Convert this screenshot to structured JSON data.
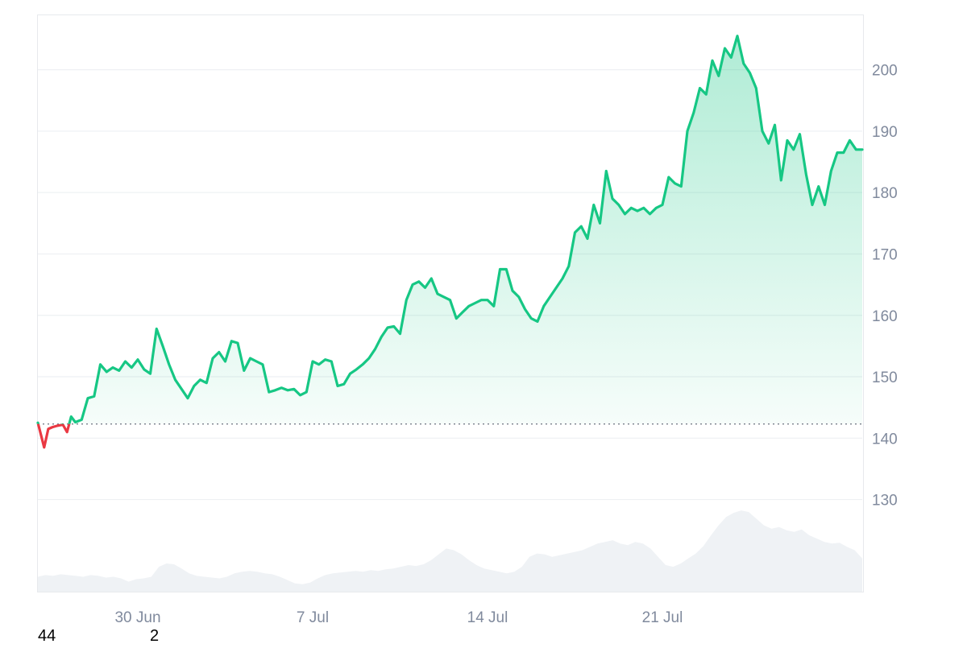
{
  "chart_data": {
    "type": "area",
    "title": "",
    "xlabel": "",
    "ylabel": "",
    "ylim": [
      115,
      209
    ],
    "y_ticks": [
      130,
      140,
      150,
      160,
      170,
      180,
      190,
      200
    ],
    "x_ticks": [
      {
        "date": "2025-06-30",
        "label": "30 Jun"
      },
      {
        "date": "2025-07-07",
        "label": "7 Jul"
      },
      {
        "date": "2025-07-14",
        "label": "14 Jul"
      },
      {
        "date": "2025-07-21",
        "label": "21 Jul"
      }
    ],
    "xlim": [
      "2025-06-26T00:00",
      "2025-07-29T00:00"
    ],
    "grid": "horizontal",
    "baseline": 142.3,
    "series": [
      {
        "role": "price",
        "x": [
          "2025-06-26T00:00",
          "2025-06-26T06:00",
          "2025-06-26T10:00",
          "2025-06-26T14:00",
          "2025-06-26T18:00",
          "2025-06-27T00:00",
          "2025-06-27T04:00",
          "2025-06-27T08:00",
          "2025-06-27T12:00",
          "2025-06-27T18:00",
          "2025-06-28T00:00",
          "2025-06-28T06:00",
          "2025-06-28T12:00",
          "2025-06-28T18:00",
          "2025-06-29T00:00",
          "2025-06-29T06:00",
          "2025-06-29T12:00",
          "2025-06-29T18:00",
          "2025-06-30T00:00",
          "2025-06-30T06:00",
          "2025-06-30T12:00",
          "2025-06-30T18:00",
          "2025-07-01T00:00",
          "2025-07-01T06:00",
          "2025-07-01T12:00",
          "2025-07-01T18:00",
          "2025-07-02T00:00",
          "2025-07-02T06:00",
          "2025-07-02T12:00",
          "2025-07-02T18:00",
          "2025-07-03T00:00",
          "2025-07-03T06:00",
          "2025-07-03T12:00",
          "2025-07-03T18:00",
          "2025-07-04T00:00",
          "2025-07-04T06:00",
          "2025-07-04T12:00",
          "2025-07-04T18:00",
          "2025-07-05T00:00",
          "2025-07-05T06:00",
          "2025-07-05T12:00",
          "2025-07-05T18:00",
          "2025-07-06T00:00",
          "2025-07-06T06:00",
          "2025-07-06T12:00",
          "2025-07-06T18:00",
          "2025-07-07T00:00",
          "2025-07-07T06:00",
          "2025-07-07T12:00",
          "2025-07-07T18:00",
          "2025-07-08T00:00",
          "2025-07-08T06:00",
          "2025-07-08T12:00",
          "2025-07-08T18:00",
          "2025-07-09T00:00",
          "2025-07-09T06:00",
          "2025-07-09T12:00",
          "2025-07-09T18:00",
          "2025-07-10T00:00",
          "2025-07-10T06:00",
          "2025-07-10T12:00",
          "2025-07-10T18:00",
          "2025-07-11T00:00",
          "2025-07-11T06:00",
          "2025-07-11T12:00",
          "2025-07-11T18:00",
          "2025-07-12T00:00",
          "2025-07-12T06:00",
          "2025-07-12T12:00",
          "2025-07-12T18:00",
          "2025-07-13T00:00",
          "2025-07-13T06:00",
          "2025-07-13T12:00",
          "2025-07-13T18:00",
          "2025-07-14T00:00",
          "2025-07-14T06:00",
          "2025-07-14T12:00",
          "2025-07-14T18:00",
          "2025-07-15T00:00",
          "2025-07-15T06:00",
          "2025-07-15T12:00",
          "2025-07-15T18:00",
          "2025-07-16T00:00",
          "2025-07-16T06:00",
          "2025-07-16T12:00",
          "2025-07-16T18:00",
          "2025-07-17T00:00",
          "2025-07-17T06:00",
          "2025-07-17T12:00",
          "2025-07-17T18:00",
          "2025-07-18T00:00",
          "2025-07-18T06:00",
          "2025-07-18T12:00",
          "2025-07-18T18:00",
          "2025-07-19T00:00",
          "2025-07-19T06:00",
          "2025-07-19T12:00",
          "2025-07-19T18:00",
          "2025-07-20T00:00",
          "2025-07-20T06:00",
          "2025-07-20T12:00",
          "2025-07-20T18:00",
          "2025-07-21T00:00",
          "2025-07-21T06:00",
          "2025-07-21T12:00",
          "2025-07-21T18:00",
          "2025-07-22T00:00",
          "2025-07-22T06:00",
          "2025-07-22T12:00",
          "2025-07-22T18:00",
          "2025-07-23T00:00",
          "2025-07-23T06:00",
          "2025-07-23T12:00",
          "2025-07-23T18:00",
          "2025-07-24T00:00",
          "2025-07-24T06:00",
          "2025-07-24T12:00",
          "2025-07-24T18:00",
          "2025-07-25T00:00",
          "2025-07-25T06:00",
          "2025-07-25T12:00",
          "2025-07-25T18:00",
          "2025-07-26T00:00",
          "2025-07-26T06:00",
          "2025-07-26T12:00",
          "2025-07-26T18:00",
          "2025-07-27T00:00",
          "2025-07-27T06:00",
          "2025-07-27T12:00",
          "2025-07-27T18:00",
          "2025-07-28T00:00",
          "2025-07-28T06:00",
          "2025-07-28T12:00",
          "2025-07-28T18:00",
          "2025-07-29T00:00"
        ],
        "y": [
          142.5,
          138.5,
          141.5,
          141.8,
          142.0,
          142.2,
          141.0,
          143.5,
          142.6,
          143.0,
          146.5,
          146.8,
          152.0,
          150.8,
          151.5,
          151.0,
          152.5,
          151.5,
          152.8,
          151.2,
          150.5,
          157.8,
          155.0,
          152.0,
          149.5,
          148.0,
          146.5,
          148.5,
          149.5,
          149.0,
          153.0,
          154.0,
          152.5,
          155.8,
          155.5,
          151.0,
          153.0,
          152.5,
          152.0,
          147.5,
          147.8,
          148.2,
          147.8,
          148.0,
          147.0,
          147.5,
          152.5,
          152.0,
          152.8,
          152.5,
          148.5,
          148.8,
          150.5,
          151.2,
          152.0,
          153.0,
          154.5,
          156.5,
          158.0,
          158.2,
          157.0,
          162.5,
          165.0,
          165.5,
          164.5,
          166.0,
          163.5,
          163.0,
          162.5,
          159.5,
          160.5,
          161.5,
          162.0,
          162.5,
          162.5,
          161.5,
          167.5,
          167.5,
          164.0,
          163.0,
          161.0,
          159.5,
          159.0,
          161.5,
          163.0,
          164.5,
          166.0,
          168.0,
          173.5,
          174.5,
          172.5,
          178.0,
          175.0,
          183.5,
          179.0,
          178.0,
          176.5,
          177.5,
          177.0,
          177.5,
          176.5,
          177.5,
          178.0,
          182.5,
          181.5,
          181.0,
          190.0,
          193.0,
          197.0,
          196.0,
          201.5,
          199.0,
          203.5,
          202.0,
          205.5,
          201.0,
          199.5,
          197.0,
          190.0,
          188.0,
          191.0,
          182.0,
          188.5,
          187.0,
          189.5,
          183.0,
          178.0,
          181.0,
          178.0,
          183.5,
          186.5,
          186.5,
          188.5,
          187.0,
          187.0
        ]
      },
      {
        "role": "volume",
        "x_start": "2025-06-26T00:00",
        "x_end": "2025-07-29T00:00",
        "relative_values": [
          0.18,
          0.2,
          0.19,
          0.21,
          0.2,
          0.19,
          0.18,
          0.2,
          0.19,
          0.17,
          0.18,
          0.16,
          0.12,
          0.15,
          0.16,
          0.18,
          0.3,
          0.34,
          0.33,
          0.28,
          0.22,
          0.19,
          0.18,
          0.17,
          0.16,
          0.18,
          0.22,
          0.24,
          0.25,
          0.24,
          0.22,
          0.21,
          0.18,
          0.14,
          0.1,
          0.09,
          0.11,
          0.16,
          0.2,
          0.22,
          0.23,
          0.24,
          0.25,
          0.24,
          0.26,
          0.25,
          0.27,
          0.28,
          0.3,
          0.32,
          0.31,
          0.33,
          0.38,
          0.45,
          0.52,
          0.5,
          0.45,
          0.38,
          0.32,
          0.28,
          0.26,
          0.24,
          0.22,
          0.24,
          0.3,
          0.42,
          0.46,
          0.45,
          0.42,
          0.44,
          0.46,
          0.48,
          0.5,
          0.54,
          0.58,
          0.6,
          0.62,
          0.58,
          0.56,
          0.6,
          0.58,
          0.52,
          0.42,
          0.32,
          0.3,
          0.34,
          0.4,
          0.46,
          0.55,
          0.68,
          0.8,
          0.9,
          0.95,
          0.98,
          0.96,
          0.88,
          0.8,
          0.76,
          0.78,
          0.74,
          0.72,
          0.75,
          0.68,
          0.64,
          0.6,
          0.58,
          0.59,
          0.54,
          0.5,
          0.4
        ]
      }
    ]
  },
  "stray_text": {
    "left": "44",
    "right": "2"
  },
  "colors": {
    "up": "#16c784",
    "down": "#ea3943",
    "grid": "#eef0f3",
    "axis_text": "#808a9d",
    "volume": "#eff2f5",
    "baseline": "#6b7280"
  }
}
